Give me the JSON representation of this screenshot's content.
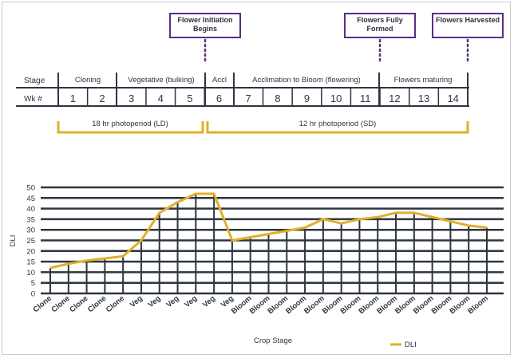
{
  "callouts": {
    "flower_initiation": "Flower Initiation Begins",
    "flowers_formed": "Flowers Fully Formed",
    "flowers_harvested": "Flowers Harvested"
  },
  "timeline": {
    "stage_label": "Stage",
    "week_label": "Wk #",
    "stages": [
      "Cloning",
      "Vegetative (bulking)",
      "Accl",
      "Acclimation to Bloom (flowering)",
      "Flowers maturing"
    ],
    "weeks": [
      "1",
      "2",
      "3",
      "4",
      "5",
      "6",
      "7",
      "8",
      "9",
      "10",
      "11",
      "12",
      "13",
      "14"
    ],
    "photoperiods": [
      "18 hr photoperiod (LD)",
      "12 hr photoperiod (SD)"
    ]
  },
  "colors": {
    "line": "#e0b02a",
    "axis": "#2e3540",
    "grid": "#2e3540",
    "callout_border": "#5a2d86",
    "timeline_line": "#e0b02a"
  },
  "chart_data": {
    "type": "line",
    "title": "",
    "xlabel": "Crop Stage",
    "ylabel": "DLI",
    "ylim": [
      0,
      50
    ],
    "yticks": [
      0,
      5,
      10,
      15,
      20,
      25,
      30,
      35,
      40,
      45,
      50
    ],
    "grid": true,
    "legend": "bottom-right",
    "categories": [
      "Clone",
      "Clone",
      "Clone",
      "Clone",
      "Clone",
      "Veg",
      "Veg",
      "Veg",
      "Veg",
      "Veg",
      "Veg",
      "Bloom",
      "Bloom",
      "Bloom",
      "Bloom",
      "Bloom",
      "Bloom",
      "Bloom",
      "Bloom",
      "Bloom",
      "Bloom",
      "Bloom",
      "Bloom",
      "Bloom",
      "Bloom"
    ],
    "series": [
      {
        "name": "DLI",
        "values": [
          12,
          14,
          15.5,
          16.5,
          17.5,
          25,
          38,
          43,
          47,
          47,
          25,
          26.5,
          28,
          29.5,
          31,
          35,
          33,
          35,
          36,
          38,
          38,
          36,
          34,
          32,
          31
        ]
      }
    ]
  }
}
